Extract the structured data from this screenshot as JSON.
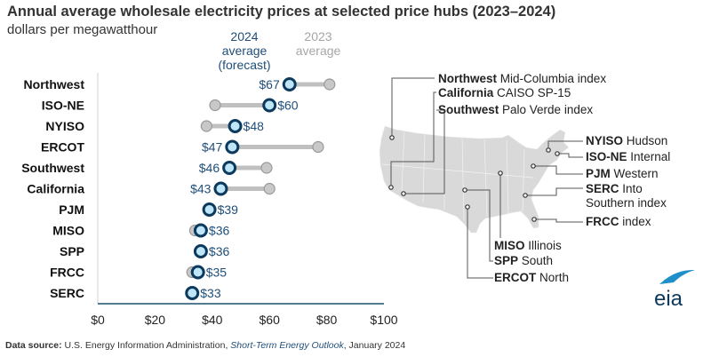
{
  "title": "Annual average wholesale electricity prices at selected price hubs (2023–2024)",
  "subtitle": "dollars per megawatthour",
  "source": {
    "label": "Data source:",
    "text1": "U.S. Energy Information Administration,",
    "publication": "Short-Term Energy Outlook",
    "text2": ", January 2024"
  },
  "logo": "eia",
  "colors": {
    "y2024_fill": "#bfe6f8",
    "y2024_stroke": "#0d3a5c",
    "y2023": "#c8c8c8",
    "connector": "#c0c0c0",
    "axis": "#1f4e6b",
    "label_2024": "#1f4e79",
    "label_2023": "#a6a6a6",
    "map": "#d9d9d9"
  },
  "chart_data": {
    "type": "dumbbell",
    "title": "Annual average wholesale electricity prices at selected price hubs (2023–2024)",
    "ylabel": "",
    "xlabel": "",
    "unit": "dollars per megawatthour",
    "xlim": [
      0,
      100
    ],
    "x_ticks": [
      "$0",
      "$20",
      "$40",
      "$60",
      "$80",
      "$100"
    ],
    "x_tick_values": [
      0,
      20,
      40,
      60,
      80,
      100
    ],
    "grid": false,
    "legend_placement": "top",
    "categories": [
      "Northwest",
      "ISO-NE",
      "NYISO",
      "ERCOT",
      "Southwest",
      "California",
      "PJM",
      "MISO",
      "SPP",
      "FRCC",
      "SERC"
    ],
    "series": [
      {
        "name": "2024 average (forecast)",
        "name_lines": [
          "2024",
          "average",
          "(forecast)"
        ],
        "values": [
          67,
          60,
          48,
          47,
          46,
          43,
          39,
          36,
          36,
          35,
          33
        ],
        "labels": [
          "$67",
          "$60",
          "$48",
          "$47",
          "$46",
          "$43",
          "$39",
          "$36",
          "$36",
          "$35",
          "$33"
        ],
        "label_side": [
          "left",
          "right",
          "right",
          "left",
          "left",
          "left",
          "right",
          "right",
          "right",
          "right",
          "right"
        ]
      },
      {
        "name": "2023 average",
        "name_lines": [
          "2023",
          "average"
        ],
        "values": [
          81,
          41,
          38,
          77,
          59,
          60,
          39,
          34,
          36,
          33,
          33
        ]
      }
    ]
  },
  "map": {
    "labels": [
      {
        "bold": "Northwest",
        "text": " Mid-Columbia index"
      },
      {
        "bold": "California",
        "text": " CAISO SP-15"
      },
      {
        "bold": "Southwest",
        "text": " Palo Verde index"
      },
      {
        "bold": "NYISO",
        "text": " Hudson"
      },
      {
        "bold": "ISO-NE",
        "text": " Internal"
      },
      {
        "bold": "PJM",
        "text": " Western"
      },
      {
        "bold": "SERC",
        "text": " Into",
        "text2": "Southern index"
      },
      {
        "bold": "FRCC",
        "text": " index"
      },
      {
        "bold": "MISO",
        "text": " Illinois"
      },
      {
        "bold": "SPP",
        "text": " South"
      },
      {
        "bold": "ERCOT",
        "text": " North"
      }
    ]
  }
}
